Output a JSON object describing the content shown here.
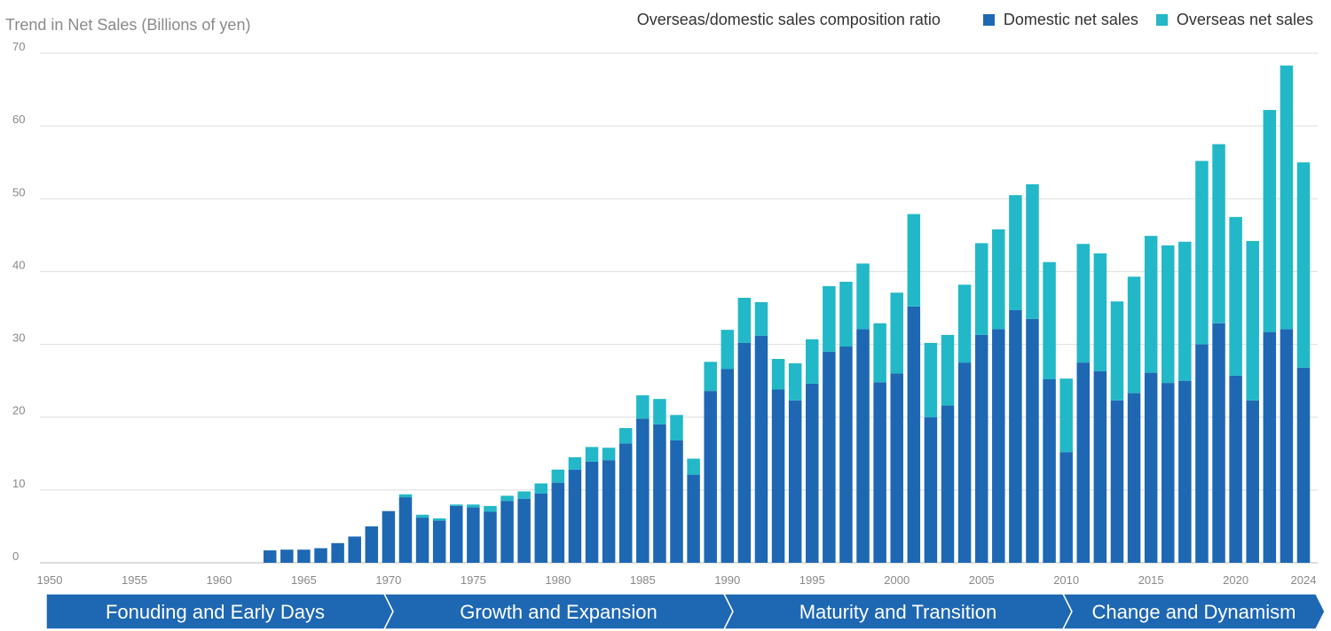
{
  "colors": {
    "domestic": "#1e67b3",
    "overseas": "#22b8c7",
    "era_band": "#1e67b3",
    "grid": "#dddddd"
  },
  "chart_data": {
    "type": "bar",
    "stacked": true,
    "title": "Trend in Net Sales (Billions of yen)",
    "legend_label": "Overseas/domestic sales composition ratio",
    "legend_position": "top-right",
    "ylim": [
      0,
      70
    ],
    "yticks": [
      0,
      10,
      20,
      30,
      40,
      50,
      60,
      70
    ],
    "xlim": [
      1950,
      2024
    ],
    "xticks": [
      1950,
      1955,
      1960,
      1965,
      1970,
      1975,
      1980,
      1985,
      1990,
      1995,
      2000,
      2005,
      2010,
      2015,
      2020,
      2024
    ],
    "grid": true,
    "categories": [
      1963,
      1964,
      1965,
      1966,
      1967,
      1968,
      1969,
      1970,
      1971,
      1972,
      1973,
      1974,
      1975,
      1976,
      1977,
      1978,
      1979,
      1980,
      1981,
      1982,
      1983,
      1984,
      1985,
      1986,
      1987,
      1988,
      1989,
      1990,
      1991,
      1992,
      1993,
      1994,
      1995,
      1996,
      1997,
      1998,
      1999,
      2000,
      2001,
      2002,
      2003,
      2004,
      2005,
      2006,
      2007,
      2008,
      2009,
      2010,
      2011,
      2012,
      2013,
      2014,
      2015,
      2016,
      2017,
      2018,
      2019,
      2020,
      2021,
      2022,
      2023,
      2024
    ],
    "series": [
      {
        "name": "Domestic net sales",
        "values": [
          1.7,
          1.8,
          1.8,
          2.0,
          2.7,
          3.6,
          5.0,
          7.1,
          9.0,
          6.2,
          5.8,
          7.8,
          7.6,
          7.0,
          8.5,
          8.8,
          9.5,
          11.0,
          12.8,
          13.9,
          14.1,
          16.4,
          19.8,
          19.0,
          16.8,
          12.1,
          23.6,
          26.6,
          30.2,
          31.2,
          23.8,
          22.3,
          24.6,
          29.0,
          29.7,
          32.1,
          24.8,
          26.0,
          35.2,
          20.0,
          21.6,
          27.5,
          31.3,
          32.1,
          34.7,
          33.5,
          25.2,
          15.2,
          27.5,
          26.3,
          22.3,
          23.3,
          26.1,
          24.7,
          25.0,
          30.0,
          32.9,
          25.7,
          22.3,
          31.7,
          32.1,
          26.8
        ]
      },
      {
        "name": "Overseas net sales",
        "values": [
          0,
          0,
          0,
          0,
          0,
          0,
          0,
          0,
          0.4,
          0.4,
          0.3,
          0.2,
          0.4,
          0.8,
          0.7,
          1.0,
          1.4,
          1.8,
          1.7,
          2.0,
          1.7,
          2.1,
          3.2,
          3.5,
          3.5,
          2.2,
          4.0,
          5.4,
          6.2,
          4.6,
          4.2,
          5.1,
          6.1,
          9.0,
          8.9,
          9.0,
          8.1,
          11.1,
          12.7,
          10.2,
          9.7,
          10.7,
          12.6,
          13.7,
          15.8,
          18.5,
          16.1,
          10.1,
          16.3,
          16.2,
          13.6,
          16.0,
          18.8,
          18.9,
          19.1,
          25.2,
          24.6,
          21.8,
          21.9,
          30.5,
          36.2,
          28.2
        ]
      }
    ]
  },
  "eras": [
    {
      "label": "Fonuding and Early Days"
    },
    {
      "label": "Growth and Expansion"
    },
    {
      "label": "Maturity and Transition"
    },
    {
      "label": "Change and Dynamism"
    }
  ]
}
